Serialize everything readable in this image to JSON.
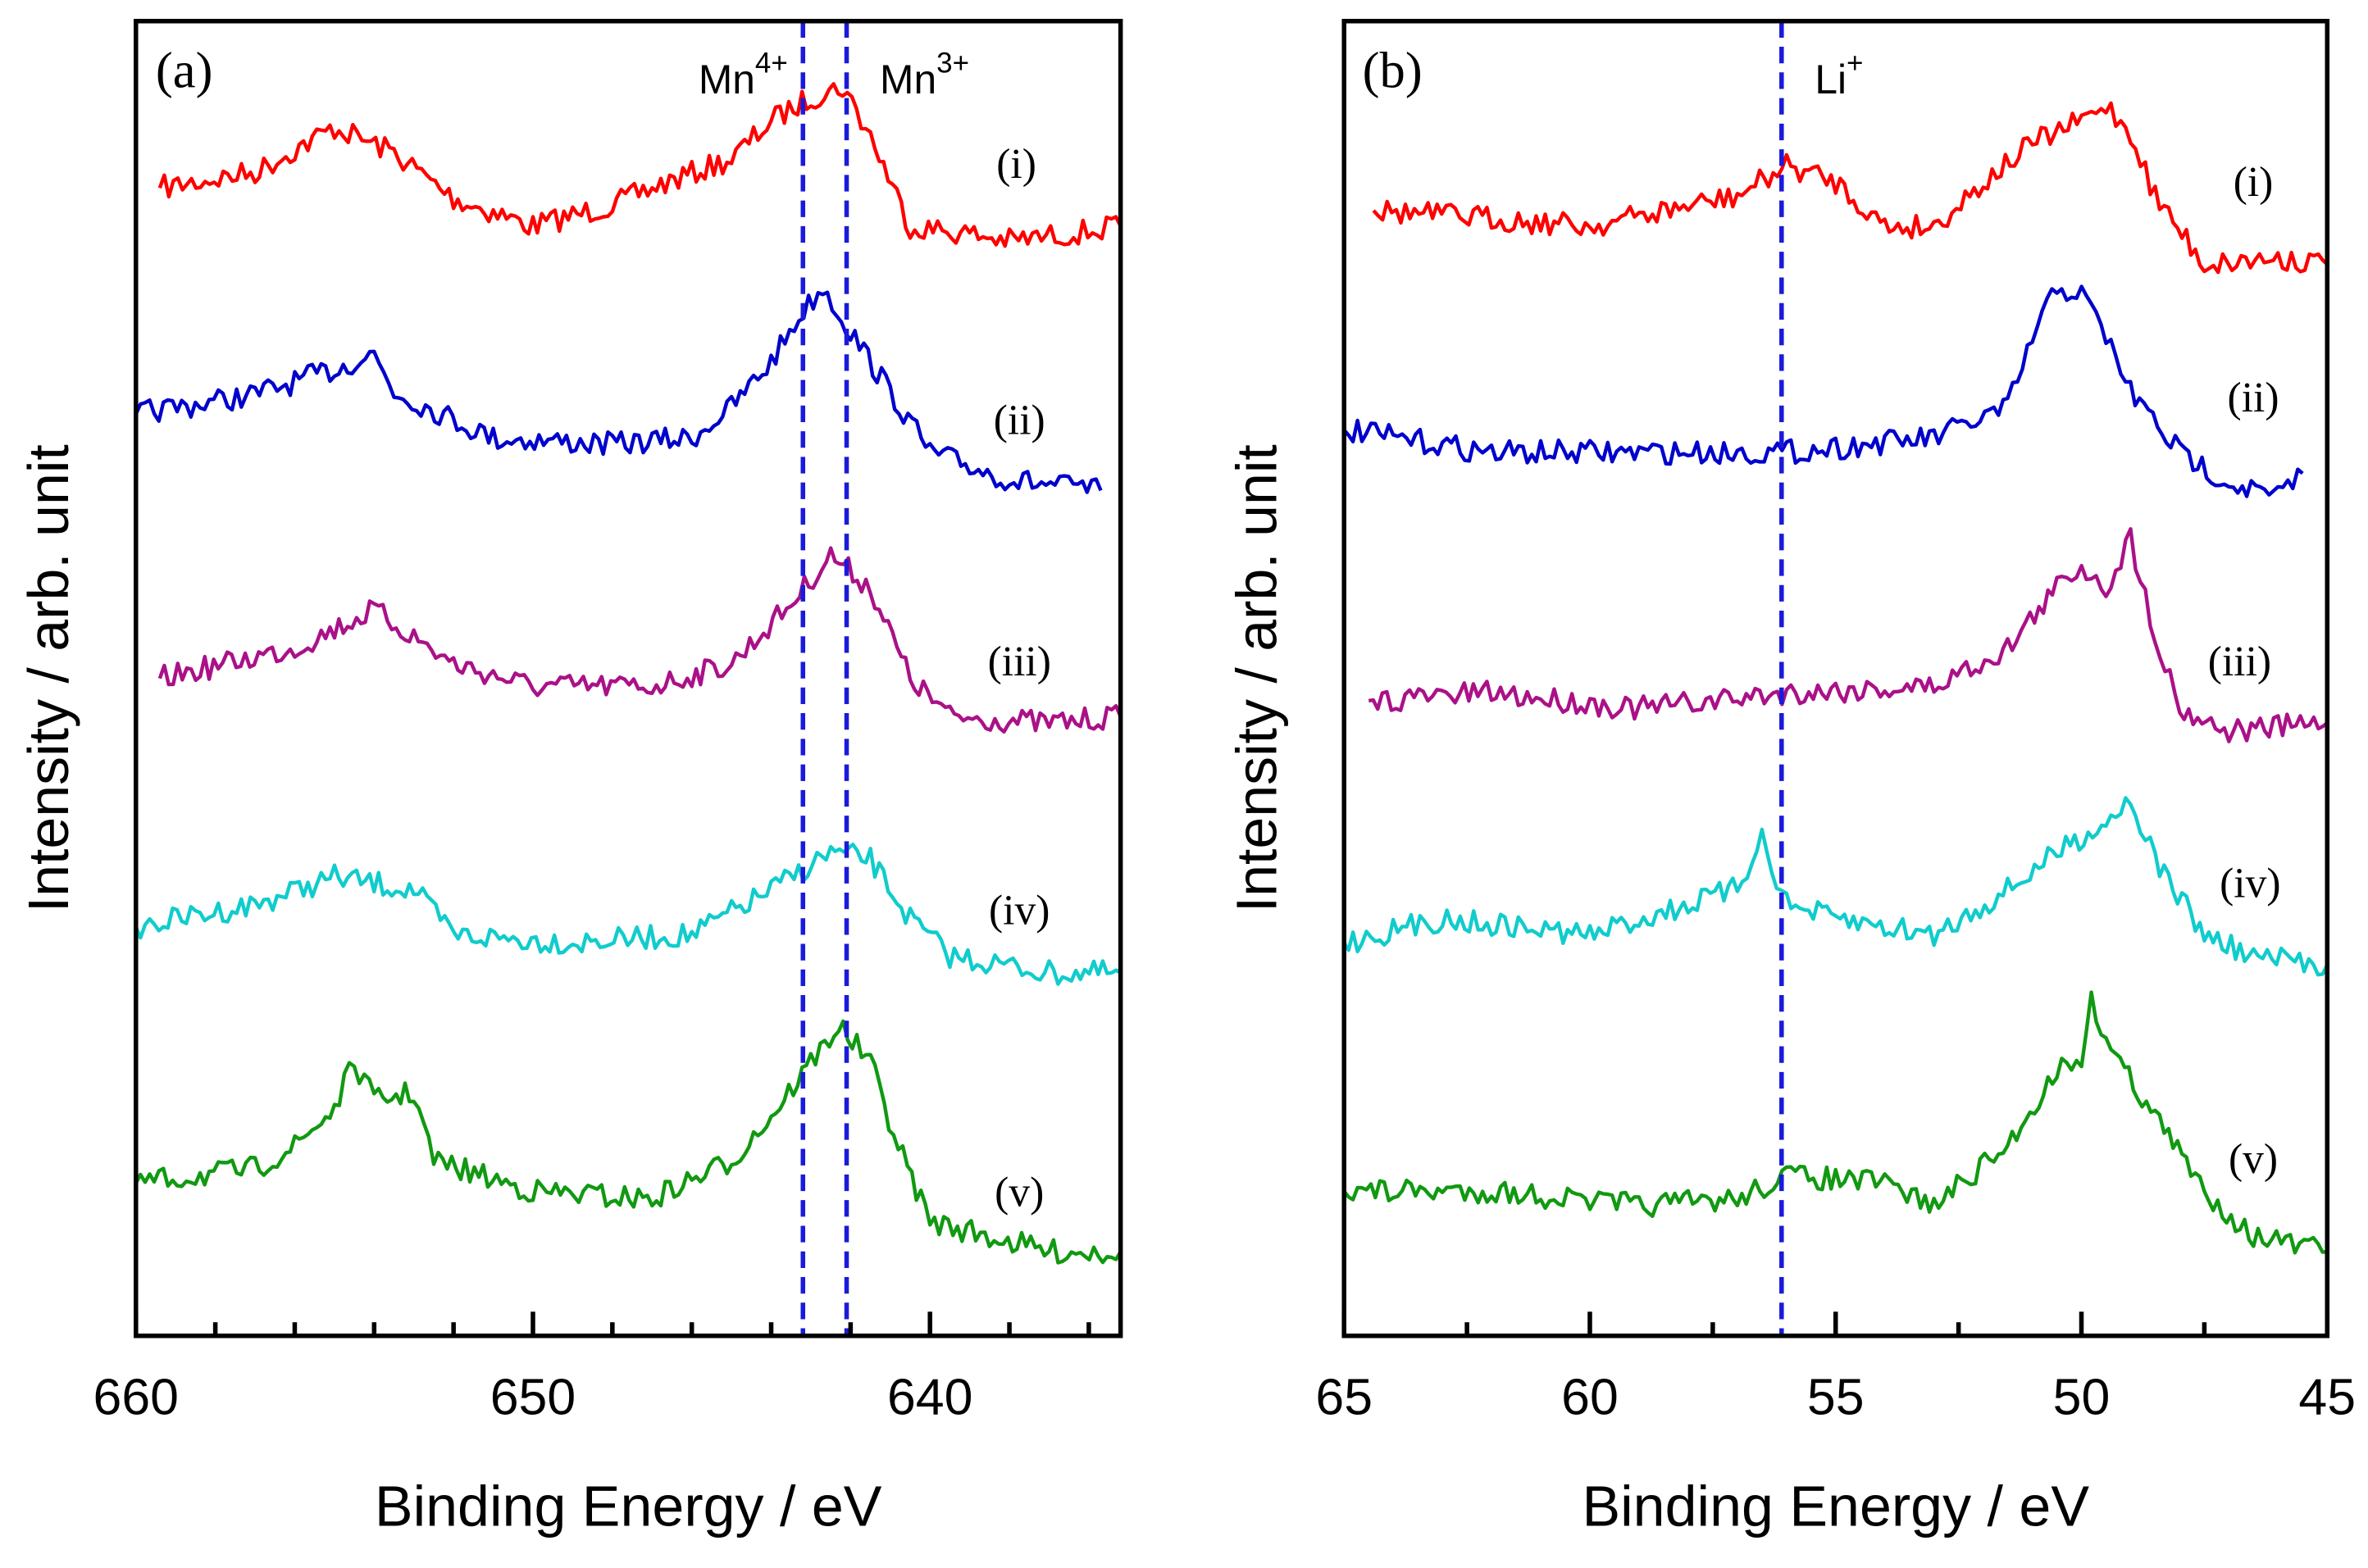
{
  "chart_data": [
    {
      "type": "line",
      "panel_label": "(a)",
      "xlabel": "Binding Energy / eV",
      "ylabel": "Intensity / arb. unit",
      "xlim": [
        660,
        635.2
      ],
      "ylim": [
        0,
        100
      ],
      "x_ticks_major": [
        660,
        650,
        640
      ],
      "x_tick_labels": [
        "660",
        "650",
        "640"
      ],
      "x_ticks_minor": [
        658,
        656,
        654,
        652,
        648,
        646,
        644,
        642,
        638,
        636
      ],
      "reference_lines": [
        {
          "x": 643.2,
          "label": "Mn",
          "sup": "4+",
          "label_side": "left"
        },
        {
          "x": 642.1,
          "label": "Mn",
          "sup": "3+",
          "label_side": "right"
        }
      ],
      "series": [
        {
          "name": "(i)",
          "color": "#ff0000",
          "x": [
            659.4,
            657,
            655,
            653.5,
            652,
            650,
            648,
            647,
            645,
            644,
            643,
            642.2,
            641.5,
            640.5,
            639,
            638,
            636.5,
            635.2
          ],
          "y": [
            87.3,
            88.5,
            91.9,
            90,
            86.5,
            84.4,
            86,
            87.3,
            89.5,
            92.4,
            94.2,
            95,
            91.3,
            84.4,
            83.8,
            83.3,
            83.8,
            84.4
          ]
        },
        {
          "name": "(ii)",
          "color": "#0000cc",
          "x": [
            660,
            657,
            655,
            654,
            653.5,
            651,
            648,
            646,
            645,
            644,
            643.3,
            642.7,
            642,
            641,
            640,
            638,
            635.7
          ],
          "y": [
            70.1,
            71.6,
            73.5,
            74.7,
            71.8,
            68.3,
            67.8,
            68.3,
            70.6,
            74.1,
            77.5,
            79.8,
            76.4,
            71.8,
            67.2,
            65.1,
            64.3
          ]
        },
        {
          "name": "(iii)",
          "color": "#aa1188",
          "x": [
            659.4,
            656,
            654,
            652,
            650,
            647,
            645,
            643.5,
            642.5,
            641.5,
            640.5,
            639.5,
            637,
            635.2
          ],
          "y": [
            50,
            52.3,
            55.2,
            51.1,
            49.4,
            49.4,
            51.1,
            55.7,
            59.4,
            56.9,
            50,
            47.1,
            46.6,
            47.1
          ]
        },
        {
          "name": "(iv)",
          "color": "#11cccc",
          "x": [
            660,
            657,
            655,
            653,
            652,
            649,
            646,
            644,
            642.5,
            641.5,
            640.5,
            639.5,
            637,
            635.2
          ],
          "y": [
            31.1,
            32.8,
            34.9,
            33.9,
            30.5,
            29.9,
            30.5,
            33.9,
            36.8,
            36.2,
            31.7,
            28.9,
            27.6,
            27.6
          ]
        },
        {
          "name": "(v)",
          "color": "#119911",
          "x": [
            660,
            657,
            656,
            655,
            654.5,
            654,
            653,
            652.5,
            650,
            647,
            645,
            644,
            643,
            642.3,
            641.5,
            640.8,
            640,
            637,
            635.2
          ],
          "y": [
            11.6,
            12.7,
            14.4,
            17.3,
            20.8,
            17.9,
            18.5,
            13.3,
            11,
            10.4,
            13.3,
            16.7,
            20.8,
            23.6,
            20.8,
            14.4,
            8.7,
            6.4,
            6.4
          ]
        }
      ]
    },
    {
      "type": "line",
      "panel_label": "(b)",
      "xlabel": "Binding Energy / eV",
      "ylabel": "Intensity / arb. unit",
      "xlim": [
        65,
        45
      ],
      "ylim": [
        0,
        100
      ],
      "x_ticks_major": [
        65,
        60,
        55,
        50,
        45
      ],
      "x_tick_labels": [
        "65",
        "60",
        "55",
        "50",
        "45"
      ],
      "x_ticks_minor": [
        62.5,
        57.5,
        52.5,
        47.5
      ],
      "reference_lines": [
        {
          "x": 56.1,
          "label": "Li",
          "sup": "+",
          "label_side": "right"
        }
      ],
      "series": [
        {
          "name": "(i)",
          "color": "#ff0000",
          "x": [
            64.4,
            62,
            60,
            57,
            56,
            55,
            54,
            53,
            52,
            51,
            50,
            49.5,
            49,
            48.5,
            47.5,
            46,
            45
          ],
          "y": [
            85.6,
            85,
            84.4,
            86.7,
            89,
            87.8,
            84.4,
            84.4,
            87.7,
            90.7,
            92.4,
            93.6,
            91.5,
            86.7,
            81.5,
            82,
            81.5
          ]
        },
        {
          "name": "(ii)",
          "color": "#0000cc",
          "x": [
            65,
            62,
            59,
            56,
            53,
            51.5,
            51,
            50.5,
            50,
            49.5,
            49,
            48,
            47,
            46,
            45.5
          ],
          "y": [
            68.9,
            67.2,
            67.2,
            67.2,
            68.3,
            70.6,
            75.8,
            79.8,
            79.2,
            76.1,
            71.8,
            67.2,
            64.9,
            63.8,
            65.6
          ]
        },
        {
          "name": "(iii)",
          "color": "#aa1188",
          "x": [
            64.5,
            62,
            59,
            56,
            53,
            51.5,
            50.5,
            50,
            49.5,
            49,
            48.5,
            48,
            47,
            45
          ],
          "y": [
            48.3,
            48.9,
            47.7,
            48.9,
            49.4,
            52.3,
            56.9,
            58.6,
            56.9,
            60.6,
            53.4,
            47.7,
            46,
            46.6
          ]
        },
        {
          "name": "(iv)",
          "color": "#11cccc",
          "x": [
            65,
            63,
            60,
            58,
            57,
            56.5,
            56,
            55,
            53,
            51.5,
            50.5,
            49.5,
            49,
            48.5,
            47.5,
            46.5,
            45
          ],
          "y": [
            29.9,
            31.7,
            30.5,
            32.8,
            34,
            38,
            32.8,
            31.7,
            30.5,
            33.9,
            36.8,
            39.1,
            40.9,
            36.2,
            30.5,
            28.8,
            28.2
          ]
        },
        {
          "name": "(v)",
          "color": "#119911",
          "x": [
            65,
            62,
            59,
            57,
            56,
            54,
            53,
            51.5,
            50.5,
            50,
            49.8,
            49.3,
            48.5,
            47.5,
            46.5,
            45
          ],
          "y": [
            11,
            11,
            9.9,
            10.4,
            12.2,
            11.6,
            9.9,
            14.4,
            20.2,
            21.3,
            25.3,
            21.3,
            16.7,
            11,
            7.6,
            6.4
          ]
        }
      ]
    }
  ]
}
